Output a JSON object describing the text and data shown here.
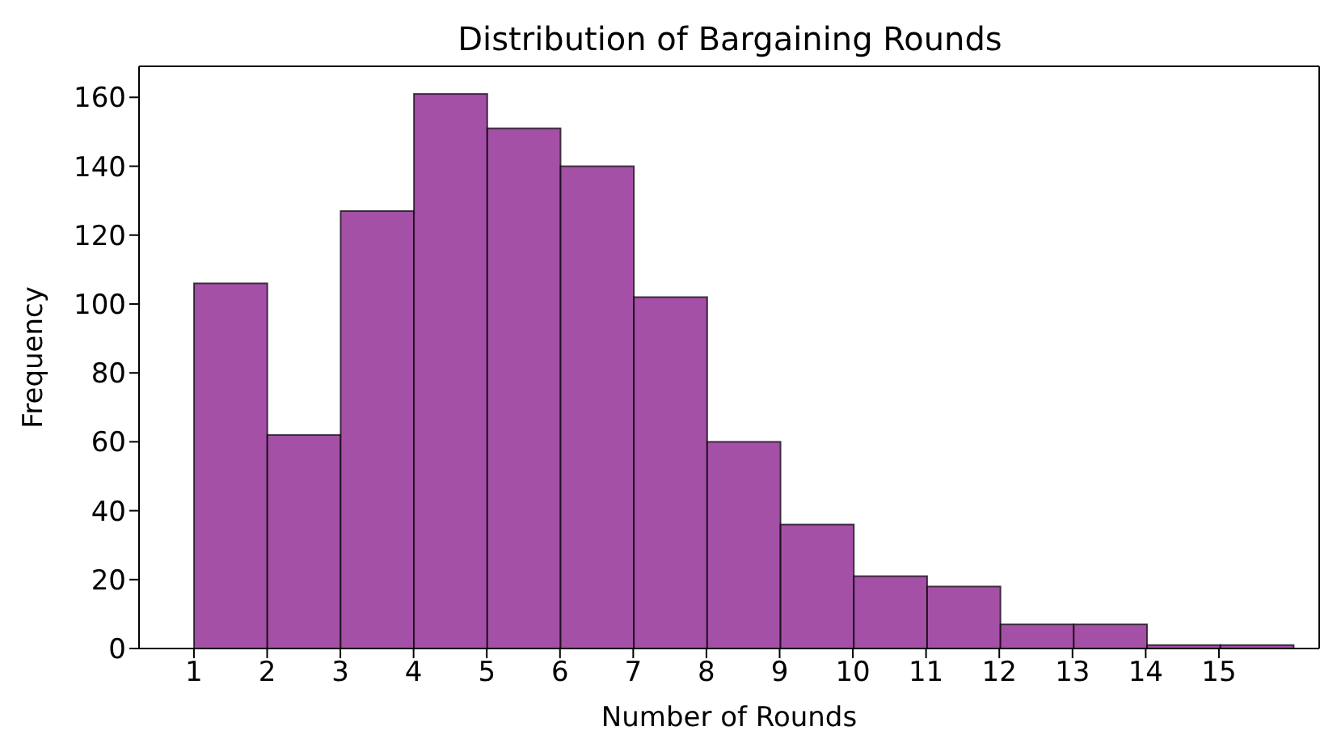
{
  "chart_data": {
    "type": "histogram",
    "title": "Distribution of Bargaining Rounds",
    "xlabel": "Number of Rounds",
    "ylabel": "Frequency",
    "bins": [
      1,
      2,
      3,
      4,
      5,
      6,
      7,
      8,
      9,
      10,
      11,
      12,
      13,
      14,
      15,
      16
    ],
    "values": [
      106,
      62,
      127,
      161,
      151,
      140,
      102,
      60,
      36,
      21,
      18,
      7,
      7,
      1,
      1
    ],
    "color": "#a34ca5",
    "xlim": [
      0.25,
      16.37
    ],
    "xticks": [
      1,
      2,
      3,
      4,
      5,
      6,
      7,
      8,
      9,
      10,
      11,
      12,
      13,
      14,
      15
    ],
    "ylim": [
      0,
      169
    ],
    "yticks": [
      0,
      20,
      40,
      60,
      80,
      100,
      120,
      140,
      160
    ],
    "grid": false,
    "legend": false
  }
}
